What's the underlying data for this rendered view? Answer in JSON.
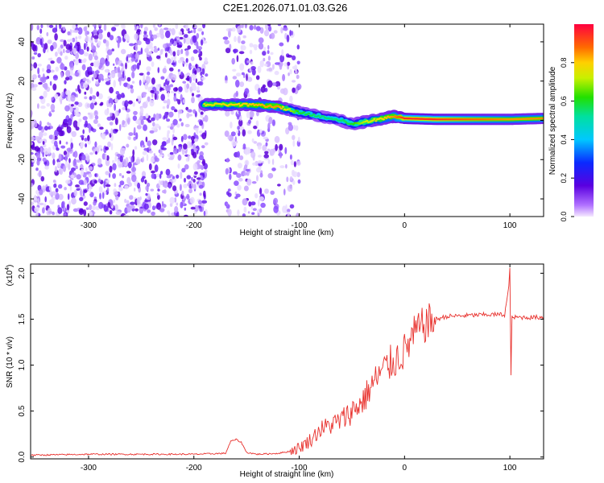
{
  "title": "C2E1.2026.071.01.03.G26",
  "colors": {
    "snr_line": "#e8302c",
    "spec_low": "#5a00d8",
    "axis": "#000000"
  },
  "chart_data": [
    {
      "type": "heatmap",
      "name": "spectrogram",
      "xlabel": "Height of straight line (km)",
      "ylabel": "Frequency (Hz)",
      "xlim": [
        -355,
        132
      ],
      "ylim": [
        -49,
        49
      ],
      "xticks": [
        -300,
        -200,
        -100,
        0,
        100
      ],
      "xtick_labels": [
        "-300",
        "-200",
        "-100",
        "0",
        "100"
      ],
      "yticks": [
        -40,
        -20,
        0,
        20,
        40
      ],
      "ytick_labels": [
        "-40",
        "-20",
        "0",
        "20",
        "40"
      ],
      "colorbar": {
        "label": "Normalized spectral amplitude",
        "range": [
          0,
          1
        ],
        "ticks": [
          0.0,
          0.2,
          0.4,
          0.6,
          0.8
        ],
        "tick_labels": [
          "0.0",
          "0.2",
          "0.4",
          "0.6",
          "0.8"
        ]
      },
      "signal_track": {
        "x": [
          -190,
          -150,
          -120,
          -100,
          -80,
          -60,
          -50,
          -40,
          -30,
          -20,
          -10,
          0,
          30,
          60,
          100,
          132
        ],
        "f": [
          8,
          8,
          7,
          4,
          2,
          0,
          -2,
          -1,
          0,
          1,
          2,
          1,
          0.5,
          0.5,
          0.5,
          1
        ],
        "amp": [
          0.75,
          0.8,
          0.85,
          0.6,
          0.55,
          0.55,
          0.6,
          0.7,
          0.75,
          0.8,
          0.85,
          0.95,
          0.95,
          0.9,
          0.85,
          0.85
        ]
      },
      "noise_regions": [
        {
          "x": [
            -355,
            -188
          ],
          "density": "high"
        },
        {
          "x": [
            -170,
            -100
          ],
          "density": "medium"
        }
      ]
    },
    {
      "type": "line",
      "name": "snr",
      "xlabel": "Height of straight line (km)",
      "ylabel": "SNR (10 * v/v)",
      "scale_label": "(x10",
      "scale_exp": "4",
      "scale_suffix": ")",
      "xlim": [
        -355,
        132
      ],
      "ylim": [
        -0.02,
        2.1
      ],
      "xticks": [
        -300,
        -200,
        -100,
        0,
        100
      ],
      "xtick_labels": [
        "-300",
        "-200",
        "-100",
        "0",
        "100"
      ],
      "yticks": [
        0.0,
        0.5,
        1.0,
        1.5,
        2.0
      ],
      "ytick_labels": [
        "0.0",
        "0.5",
        "1.0",
        "1.5",
        "2.0"
      ],
      "series": [
        {
          "name": "SNR",
          "x": [
            -355,
            -300,
            -250,
            -200,
            -170,
            -165,
            -160,
            -155,
            -150,
            -140,
            -120,
            -110,
            -100,
            -90,
            -80,
            -70,
            -60,
            -50,
            -40,
            -30,
            -20,
            -10,
            0,
            5,
            10,
            20,
            30,
            40,
            60,
            80,
            95,
            99,
            100,
            101,
            102,
            110,
            132
          ],
          "y": [
            0.02,
            0.03,
            0.03,
            0.03,
            0.04,
            0.17,
            0.19,
            0.16,
            0.05,
            0.03,
            0.04,
            0.06,
            0.1,
            0.18,
            0.3,
            0.35,
            0.4,
            0.5,
            0.6,
            0.8,
            0.95,
            1.05,
            1.15,
            1.25,
            1.35,
            1.45,
            1.5,
            1.53,
            1.54,
            1.55,
            1.55,
            1.85,
            2.05,
            0.9,
            1.52,
            1.52,
            1.52
          ]
        }
      ]
    }
  ]
}
